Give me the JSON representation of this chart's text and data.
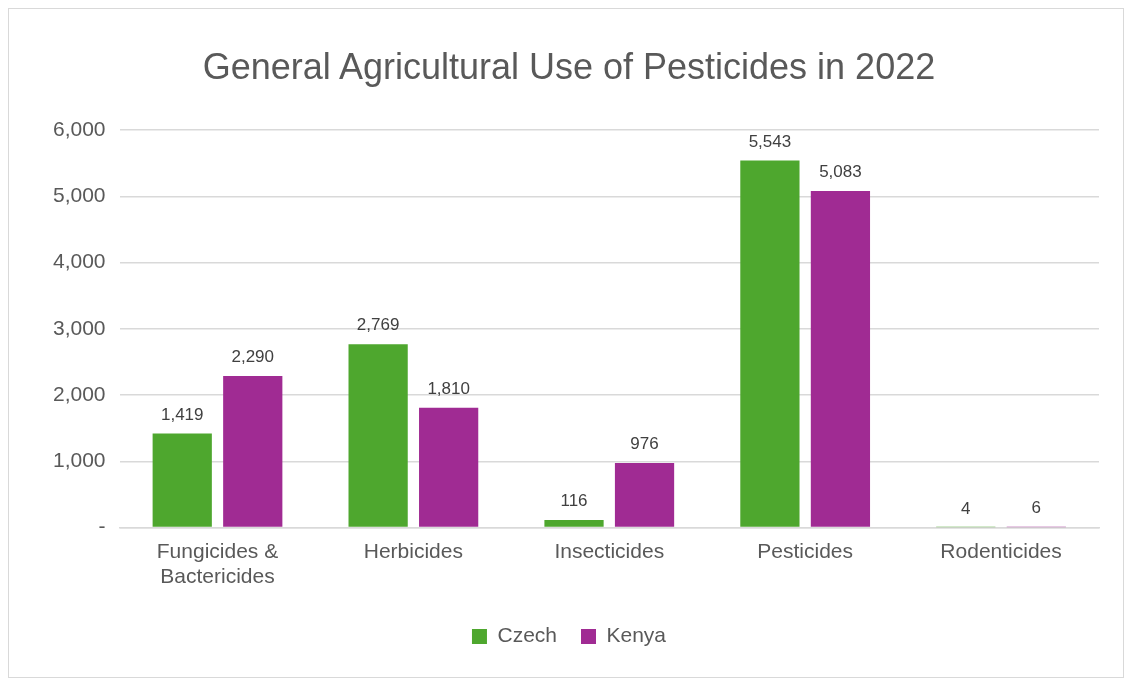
{
  "chart_data": {
    "type": "bar",
    "title": "General Agricultural Use of Pesticides in 2022",
    "categories": [
      "Fungicides & Bactericides",
      "Herbicides",
      "Insecticides",
      "Pesticides",
      "Rodenticides"
    ],
    "series": [
      {
        "name": "Czech",
        "color": "#4ea72e",
        "values": [
          1419,
          2769,
          116,
          5543,
          4
        ],
        "value_labels": [
          "1,419",
          "2,769",
          "116",
          "5,543",
          "4"
        ]
      },
      {
        "name": "Kenya",
        "color": "#a02b93",
        "values": [
          2290,
          1810,
          976,
          5083,
          6
        ],
        "value_labels": [
          "2,290",
          "1,810",
          "976",
          "5,083",
          "6"
        ]
      }
    ],
    "ylim": [
      0,
      6000
    ],
    "yticks": [
      {
        "value": 0,
        "label": "-"
      },
      {
        "value": 1000,
        "label": "1,000"
      },
      {
        "value": 2000,
        "label": "2,000"
      },
      {
        "value": 3000,
        "label": "3,000"
      },
      {
        "value": 4000,
        "label": "4,000"
      },
      {
        "value": 5000,
        "label": "5,000"
      },
      {
        "value": 6000,
        "label": "6,000"
      }
    ],
    "grid": "y",
    "legend": "bottom"
  }
}
